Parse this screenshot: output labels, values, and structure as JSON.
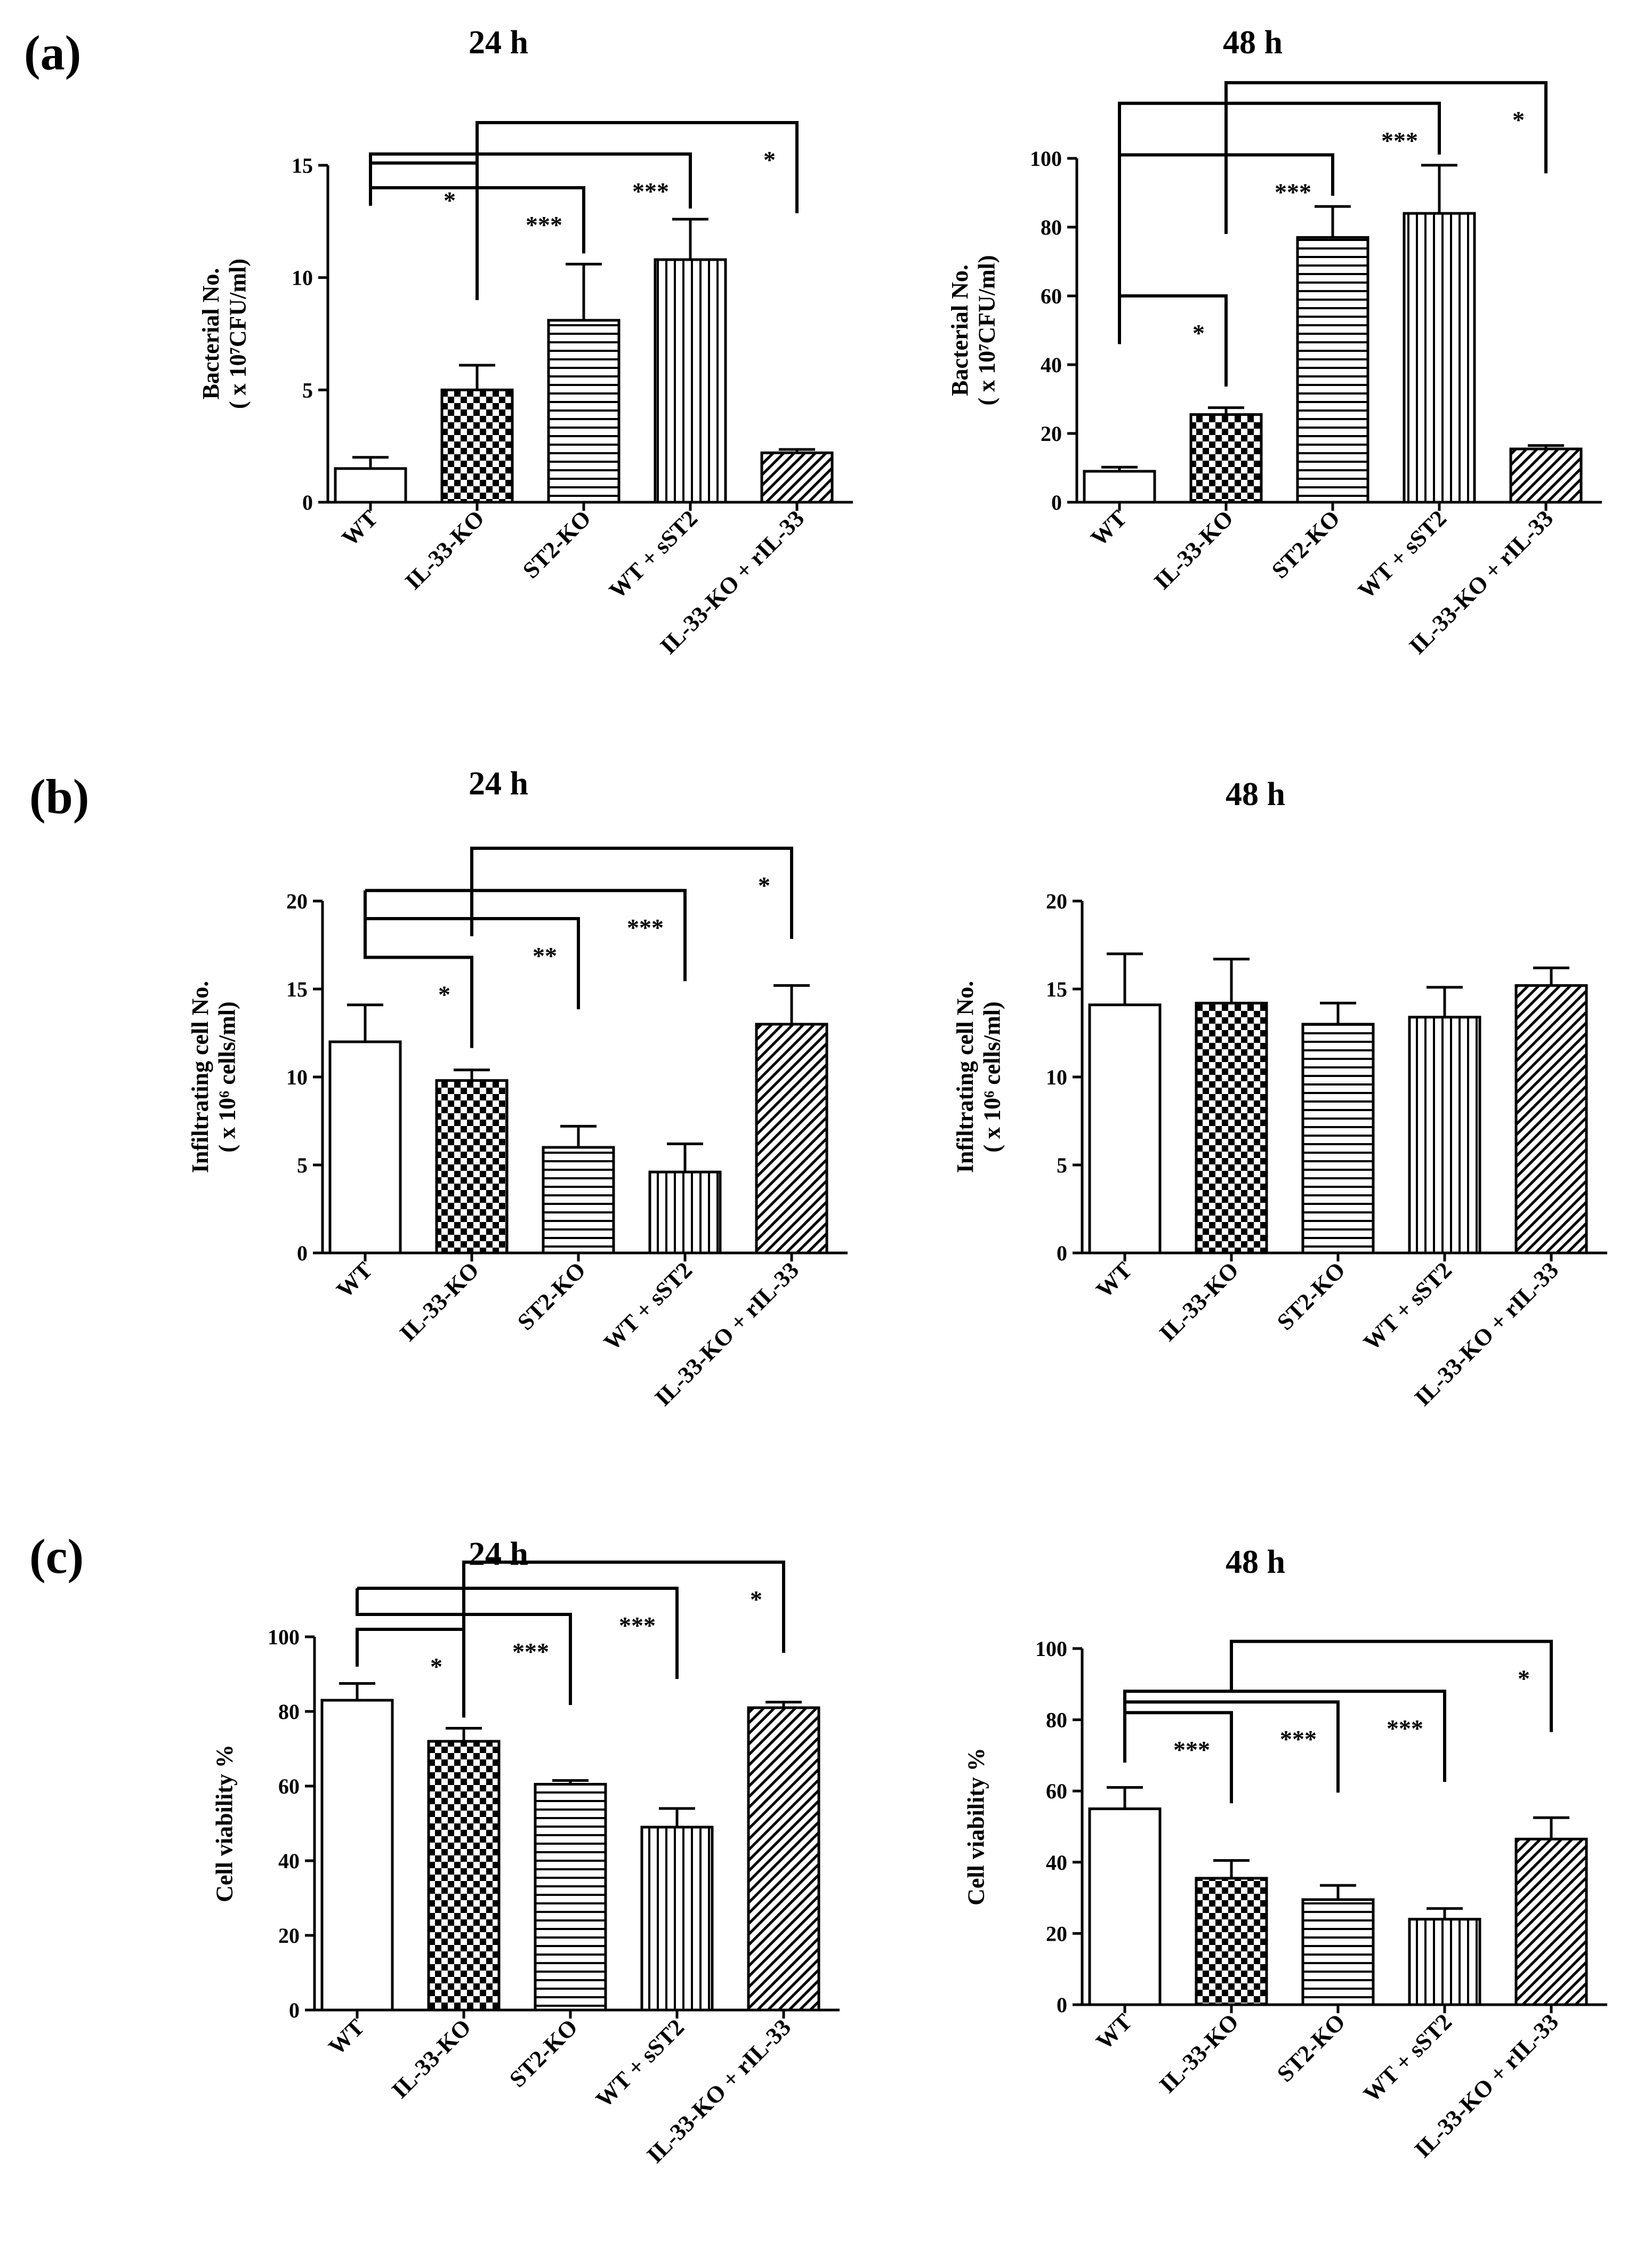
{
  "panels": [
    {
      "letter": "(a)"
    },
    {
      "letter": "(b)"
    },
    {
      "letter": "(c)"
    }
  ],
  "colors": {
    "ink": "#000000",
    "background": "#ffffff"
  },
  "chart_data": [
    {
      "type": "bar",
      "panel": "(a)",
      "title": "24 h",
      "ylabel_line1": "Bacterial No.",
      "ylabel_line2": "( x 10⁷CFU/ml)",
      "categories": [
        "WT",
        "IL-33-KO",
        "ST2-KO",
        "WT + sST2",
        "IL-33-KO + rIL-33"
      ],
      "patterns": [
        "open",
        "checker",
        "horizontal",
        "vertical",
        "diagonal"
      ],
      "values": [
        1.5,
        5.0,
        8.1,
        10.8,
        2.2
      ],
      "errors": [
        0.5,
        1.1,
        2.5,
        1.8,
        0.15
      ],
      "ylim": [
        0,
        15
      ],
      "yticks": [
        "0",
        "5",
        "10",
        "15"
      ],
      "significance": [
        {
          "from": 0,
          "to": 1,
          "label": "*",
          "level": 15.1,
          "tail": 13.2
        },
        {
          "from": 0,
          "to": 2,
          "label": "***",
          "level": 14.0,
          "tail": 13.2
        },
        {
          "from": 0,
          "to": 3,
          "label": "***",
          "level": 15.5,
          "tail": 14.8
        },
        {
          "from": 1,
          "to": 4,
          "label": "*",
          "level": 16.9,
          "tail": 9.0
        }
      ]
    },
    {
      "type": "bar",
      "panel": "(a)",
      "title": "48 h",
      "ylabel_line1": "Bacterial No.",
      "ylabel_line2": "( x 10⁷CFU/ml)",
      "categories": [
        "WT",
        "IL-33-KO",
        "ST2-KO",
        "WT + sST2",
        "IL-33-KO + rIL-33"
      ],
      "patterns": [
        "open",
        "checker",
        "horizontal",
        "vertical",
        "diagonal"
      ],
      "values": [
        9,
        25.5,
        77,
        84,
        15.5
      ],
      "errors": [
        1.2,
        2.0,
        9.0,
        14.0,
        1.0
      ],
      "ylim": [
        0,
        100
      ],
      "yticks": [
        "0",
        "20",
        "40",
        "60",
        "80",
        "100"
      ],
      "significance": [
        {
          "from": 0,
          "to": 1,
          "label": "*",
          "level": 60,
          "tail": 46
        },
        {
          "from": 0,
          "to": 2,
          "label": "***",
          "level": 101,
          "tail": 46
        },
        {
          "from": 0,
          "to": 3,
          "label": "***",
          "level": 116,
          "tail": 46
        },
        {
          "from": 1,
          "to": 4,
          "label": "*",
          "level": 122,
          "tail": 78
        }
      ]
    },
    {
      "type": "bar",
      "panel": "(b)",
      "title": "24 h",
      "ylabel_line1": "Infiltrating cell No.",
      "ylabel_line2": "( x 10⁶ cells/ml)",
      "categories": [
        "WT",
        "IL-33-KO",
        "ST2-KO",
        "WT + sST2",
        "IL-33-KO + rIL-33"
      ],
      "patterns": [
        "open",
        "checker",
        "horizontal",
        "vertical",
        "diagonal"
      ],
      "values": [
        12,
        9.8,
        6,
        4.6,
        13
      ],
      "errors": [
        2.1,
        0.6,
        1.2,
        1.6,
        2.2
      ],
      "ylim": [
        0,
        20
      ],
      "yticks": [
        "0",
        "5",
        "10",
        "15",
        "20"
      ],
      "significance": [
        {
          "from": 0,
          "to": 1,
          "label": "*",
          "level": 16.8,
          "tail": 20.6
        },
        {
          "from": 0,
          "to": 2,
          "label": "**",
          "level": 19.0,
          "tail": 20.6
        },
        {
          "from": 0,
          "to": 3,
          "label": "***",
          "level": 20.6,
          "tail": 20.6
        },
        {
          "from": 1,
          "to": 4,
          "label": "*",
          "level": 23.0,
          "tail": 18.0
        }
      ]
    },
    {
      "type": "bar",
      "panel": "(b)",
      "title": "48 h",
      "ylabel_line1": "Infiltrating cell No.",
      "ylabel_line2": "( x 10⁶ cells/ml)",
      "categories": [
        "WT",
        "IL-33-KO",
        "ST2-KO",
        "WT + sST2",
        "IL-33-KO + rIL-33"
      ],
      "patterns": [
        "open",
        "checker",
        "horizontal",
        "vertical",
        "diagonal"
      ],
      "values": [
        14.1,
        14.2,
        13,
        13.4,
        15.2
      ],
      "errors": [
        2.9,
        2.5,
        1.2,
        1.7,
        1.0
      ],
      "ylim": [
        0,
        20
      ],
      "yticks": [
        "0",
        "5",
        "10",
        "15",
        "20"
      ],
      "significance": []
    },
    {
      "type": "bar",
      "panel": "(c)",
      "title": "24 h",
      "ylabel_line1": "Cell viability %",
      "ylabel_line2": "",
      "categories": [
        "WT",
        "IL-33-KO",
        "ST2-KO",
        "WT + sST2",
        "IL-33-KO + rIL-33"
      ],
      "patterns": [
        "open",
        "checker",
        "horizontal",
        "vertical",
        "diagonal"
      ],
      "values": [
        83,
        72,
        60.5,
        49,
        81
      ],
      "errors": [
        4.5,
        3.5,
        1.0,
        5.0,
        1.5
      ],
      "ylim": [
        0,
        100
      ],
      "yticks": [
        "0",
        "20",
        "40",
        "60",
        "80",
        "100"
      ],
      "significance": [
        {
          "from": 0,
          "to": 1,
          "label": "*",
          "level": 102,
          "tail": 92
        },
        {
          "from": 0,
          "to": 2,
          "label": "***",
          "level": 106,
          "tail": 113
        },
        {
          "from": 0,
          "to": 3,
          "label": "***",
          "level": 113,
          "tail": 113
        },
        {
          "from": 1,
          "to": 4,
          "label": "*",
          "level": 120,
          "tail": 95
        }
      ]
    },
    {
      "type": "bar",
      "panel": "(c)",
      "title": "48 h",
      "ylabel_line1": "Cell viability %",
      "ylabel_line2": "",
      "categories": [
        "WT",
        "IL-33-KO",
        "ST2-KO",
        "WT + sST2",
        "IL-33-KO + rIL-33"
      ],
      "patterns": [
        "open",
        "checker",
        "horizontal",
        "vertical",
        "diagonal"
      ],
      "values": [
        55,
        35.5,
        29.5,
        24,
        46.5
      ],
      "errors": [
        6.0,
        5.0,
        4.0,
        3.0,
        6.0
      ],
      "ylim": [
        0,
        100
      ],
      "yticks": [
        "0",
        "20",
        "40",
        "60",
        "80",
        "100"
      ],
      "significance": [
        {
          "from": 0,
          "to": 1,
          "label": "***",
          "level": 82,
          "tail": 68
        },
        {
          "from": 0,
          "to": 2,
          "label": "***",
          "level": 85,
          "tail": 68
        },
        {
          "from": 0,
          "to": 3,
          "label": "***",
          "level": 88,
          "tail": 68
        },
        {
          "from": 1,
          "to": 4,
          "label": "*",
          "level": 102,
          "tail": 88
        }
      ]
    }
  ]
}
